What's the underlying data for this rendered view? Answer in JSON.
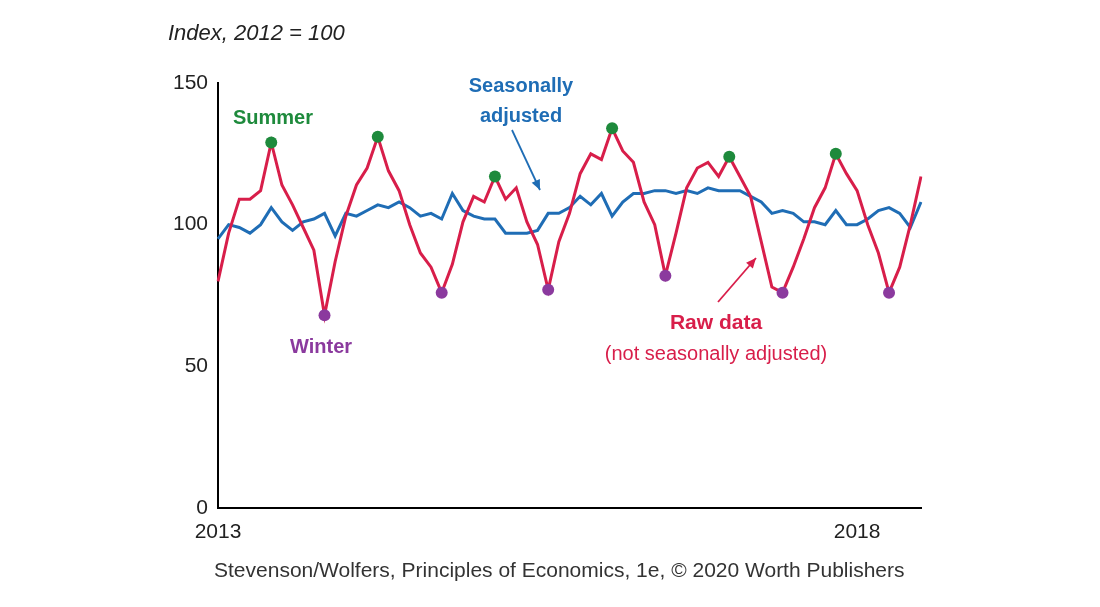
{
  "chart_data": {
    "type": "line",
    "y_label": "Index, 2012 = 100",
    "source": "Stevenson/Wolfers, Principles of Economics, 1e, © 2020 Worth Publishers",
    "summer_label": "Summer",
    "winter_label": "Winter",
    "raw_note": "(not seasonally adjusted)",
    "categories": [
      "2013",
      null,
      null,
      null,
      null,
      null,
      null,
      null,
      null,
      null,
      null,
      null,
      null,
      null,
      null,
      null,
      null,
      null,
      null,
      null,
      null,
      null,
      null,
      null,
      null,
      null,
      null,
      null,
      null,
      null,
      null,
      null,
      null,
      null,
      null,
      null,
      null,
      null,
      null,
      null,
      null,
      null,
      null,
      null,
      null,
      null,
      null,
      null,
      null,
      null,
      null,
      null,
      null,
      null,
      null,
      null,
      null,
      null,
      null,
      null,
      "2018",
      null,
      null,
      null,
      null,
      null,
      null
    ],
    "series": [
      {
        "name": "Seasonally adjusted",
        "color": "#1f6db5",
        "values": [
          95,
          100,
          99,
          97,
          100,
          106,
          101,
          98,
          101,
          102,
          104,
          96,
          104,
          103,
          105,
          107,
          106,
          108,
          106,
          103,
          104,
          102,
          111,
          105,
          103,
          102,
          102,
          97,
          97,
          97,
          98,
          104,
          104,
          106,
          110,
          107,
          111,
          103,
          108,
          111,
          111,
          112,
          112,
          111,
          112,
          111,
          113,
          112,
          112,
          112,
          110,
          108,
          104,
          105,
          104,
          101,
          101,
          100,
          105,
          100,
          100,
          102,
          105,
          106,
          104,
          99,
          108
        ]
      },
      {
        "name": "Raw data",
        "color": "#d81e4a",
        "marker": "circle",
        "values": [
          80,
          97,
          109,
          109,
          112,
          129,
          114,
          107,
          99,
          91,
          68,
          87,
          103,
          114,
          120,
          131,
          119,
          112,
          100,
          90,
          85,
          76,
          86,
          101,
          110,
          108,
          117,
          109,
          113,
          101,
          93,
          77,
          94,
          104,
          118,
          125,
          123,
          134,
          126,
          122,
          108,
          100,
          82,
          97,
          113,
          120,
          122,
          117,
          124,
          117,
          110,
          94,
          78,
          76,
          85,
          95,
          106,
          113,
          125,
          118,
          112,
          100,
          90,
          76,
          85,
          100,
          117
        ]
      }
    ],
    "ylim": [
      0,
      150
    ],
    "yticks": [
      0,
      50,
      100,
      150
    ],
    "grid": false
  }
}
